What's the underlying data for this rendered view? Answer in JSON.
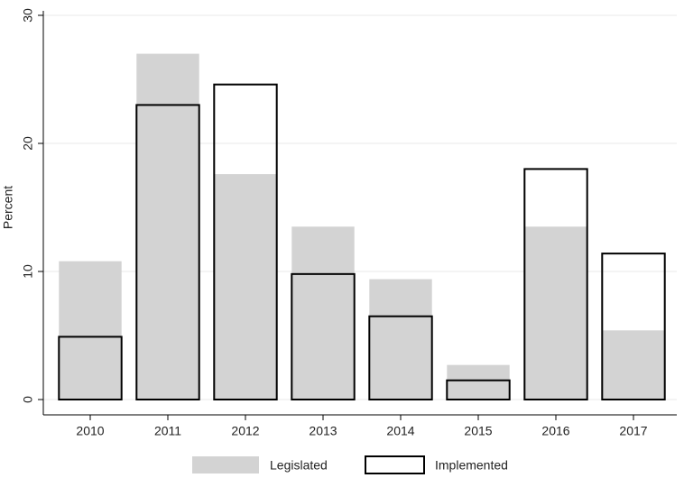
{
  "chart_data": {
    "type": "bar",
    "y_label": "Percent",
    "categories": [
      "2010",
      "2011",
      "2012",
      "2013",
      "2014",
      "2015",
      "2016",
      "2017"
    ],
    "series": [
      {
        "name": "Legislated",
        "color": "#d3d3d3",
        "style": "filled",
        "values": [
          10.8,
          27.0,
          17.6,
          13.5,
          9.4,
          2.7,
          13.5,
          5.4
        ]
      },
      {
        "name": "Implemented",
        "color": "#000000",
        "style": "outline",
        "values": [
          4.9,
          23.0,
          24.6,
          9.8,
          6.5,
          1.5,
          18.0,
          11.4
        ]
      }
    ],
    "ylim": [
      0,
      30
    ],
    "yticks": [
      0,
      10,
      20,
      30
    ],
    "grid": true
  }
}
